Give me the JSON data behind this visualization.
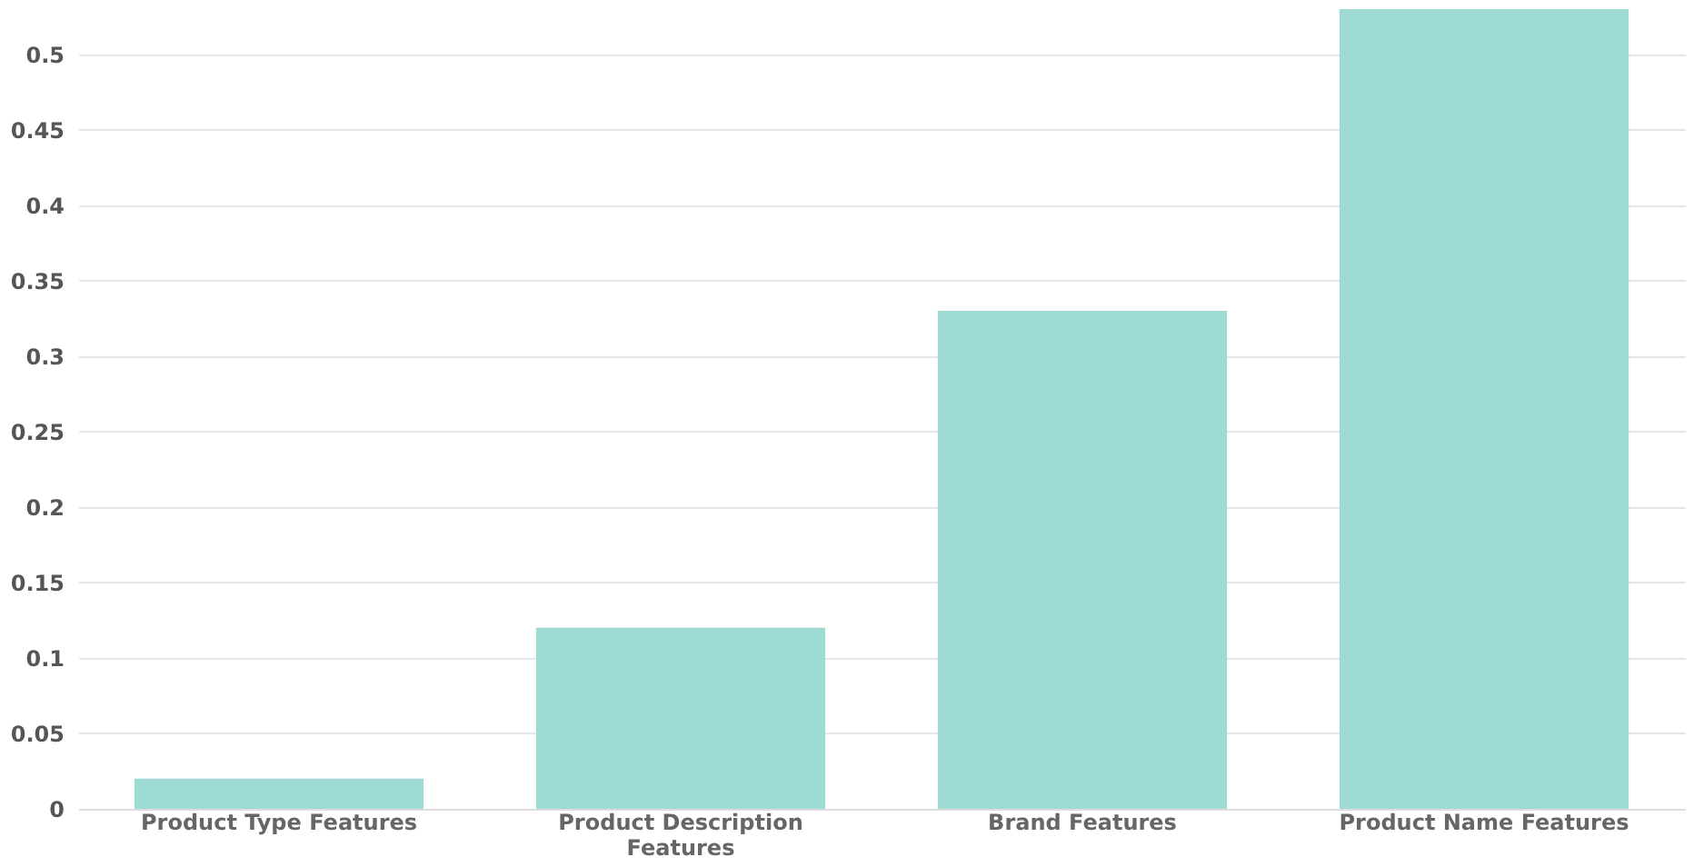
{
  "chart_data": {
    "type": "bar",
    "categories": [
      "Product Type Features",
      "Product Description Features",
      "Brand Features",
      "Product Name Features"
    ],
    "values": [
      0.02,
      0.12,
      0.33,
      0.53
    ],
    "color": "#9ddbd4",
    "ylim": [
      0,
      0.53
    ],
    "yticks": [
      0,
      0.05,
      0.1,
      0.15,
      0.2,
      0.25,
      0.3,
      0.35,
      0.4,
      0.45,
      0.5
    ],
    "grid": "y"
  }
}
